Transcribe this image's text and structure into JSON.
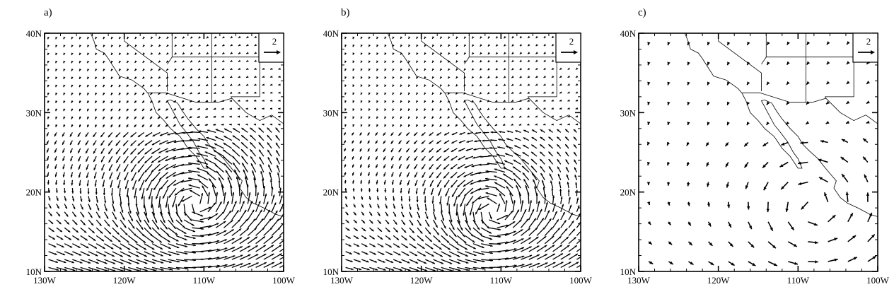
{
  "figure": {
    "panels": [
      {
        "label": "a)",
        "variant": "a"
      },
      {
        "label": "b)",
        "variant": "b"
      },
      {
        "label": "c)",
        "variant": "c"
      }
    ],
    "x_ticks": [
      "130W",
      "120W",
      "110W",
      "100W"
    ],
    "y_ticks": [
      "10N",
      "20N",
      "30N",
      "40N"
    ],
    "reference_vector_label": "2",
    "colors": {
      "ink": "#000000",
      "background": "#ffffff"
    }
  },
  "chart_data": {
    "type": "vector-field-map",
    "projection": "lon-lat",
    "xlim_lon": [
      -130,
      -100
    ],
    "ylim_lat": [
      10,
      40
    ],
    "x_tick_values": [
      -130,
      -120,
      -110,
      -100
    ],
    "y_tick_values": [
      10,
      20,
      30,
      40
    ],
    "reference_vector_magnitude": 2,
    "panels": [
      {
        "label": "a)",
        "grid_spacing_deg": 1.0,
        "cyclonic_center": [
          -111,
          18.5
        ],
        "rotation_strength": 2.0,
        "easterly_trade_strength": 1.8
      },
      {
        "label": "b)",
        "grid_spacing_deg": 1.0,
        "cyclonic_center": [
          -111,
          17.5
        ],
        "rotation_strength": 1.5,
        "easterly_trade_strength": 1.4
      },
      {
        "label": "c)",
        "grid_spacing_deg": 2.5,
        "cyclonic_center": [
          -108,
          18
        ],
        "rotation_strength": 1.2,
        "easterly_trade_strength": 0.6
      }
    ]
  }
}
